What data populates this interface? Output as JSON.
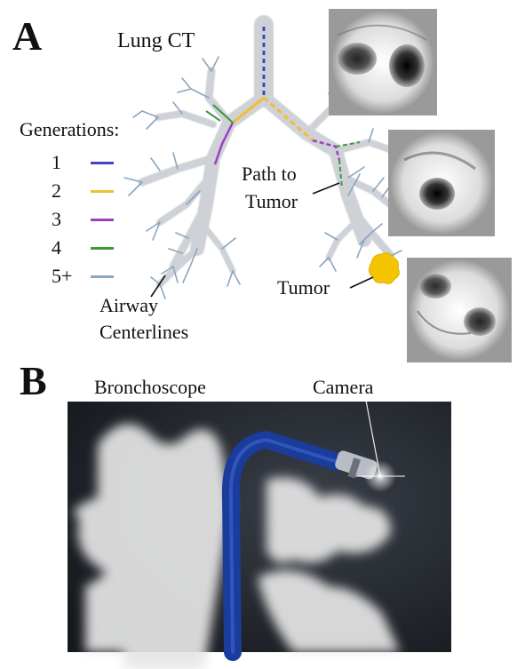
{
  "panel_a": {
    "letter": "A",
    "title": "Lung CT",
    "legend": {
      "heading": "Generations:",
      "items": [
        {
          "label": "1",
          "color": "#3f48b8"
        },
        {
          "label": "2",
          "color": "#f2be2e"
        },
        {
          "label": "3",
          "color": "#9b3fc4"
        },
        {
          "label": "4",
          "color": "#3a9a3a"
        },
        {
          "label": "5+",
          "color": "#8aa6c0"
        }
      ]
    },
    "path_label_line1": "Path to",
    "path_label_line2": "Tumor",
    "tumor_label": "Tumor",
    "centerlines_label_line1": "Airway",
    "centerlines_label_line2": "Centerlines",
    "tumor_color": "#f5c400"
  },
  "panel_b": {
    "letter": "B",
    "bronchoscope_label": "Bronchoscope",
    "camera_label": "Camera",
    "scope_color": "#1a3c9a"
  }
}
